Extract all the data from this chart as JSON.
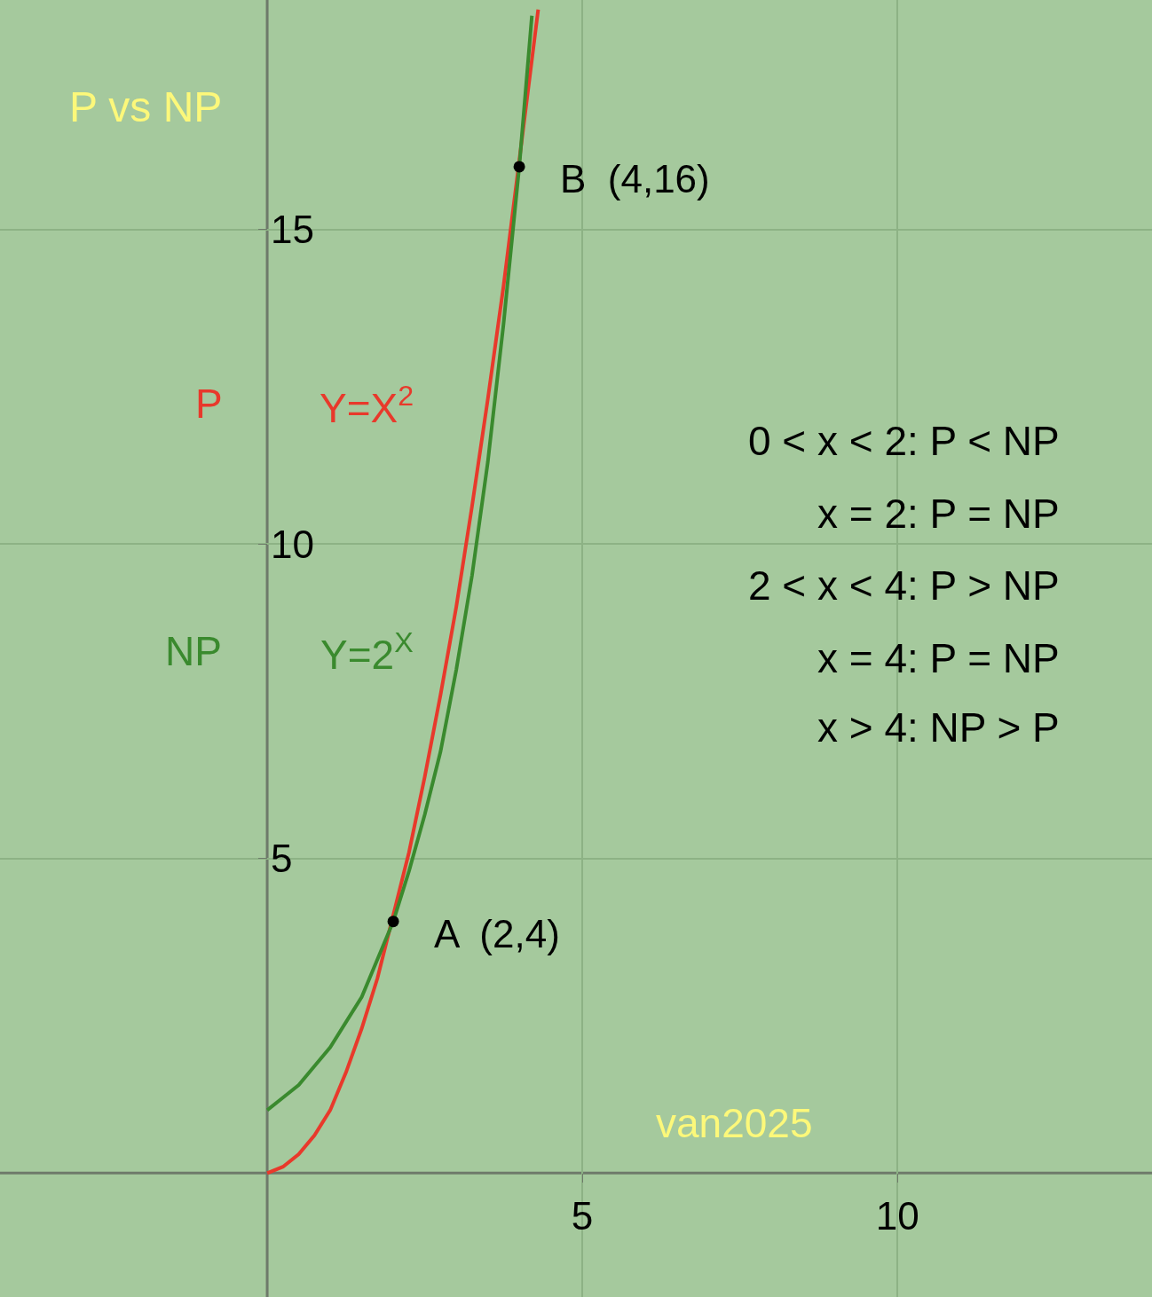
{
  "chart_data": {
    "type": "line",
    "title": "P vs NP",
    "x": [
      0,
      0.25,
      0.5,
      0.75,
      1,
      1.25,
      1.5,
      1.75,
      2,
      2.25,
      2.5,
      2.75,
      3,
      3.25,
      3.5,
      3.75,
      4,
      4.2
    ],
    "series": [
      {
        "name": "P",
        "color": "#e8392b",
        "x": [
          0,
          0.25,
          0.5,
          0.75,
          1,
          1.25,
          1.5,
          1.75,
          2.25,
          2.5,
          2.75,
          3,
          3.25,
          3.5,
          3.75,
          4.25,
          4.3
        ],
        "values": [
          0,
          0.1,
          0.3,
          0.6,
          1,
          1.6,
          2.3,
          3.1,
          5.1,
          6.3,
          7.6,
          9,
          10.6,
          12.3,
          14.1,
          18.1,
          18.5
        ]
      },
      {
        "name": "NP",
        "color": "#3a8a2e",
        "values": [
          1,
          1.2,
          1.4,
          1.7,
          2,
          2.4,
          2.8,
          3.4,
          4,
          4.8,
          5.7,
          6.7,
          8,
          9.5,
          11.3,
          13.5,
          16,
          18.4
        ]
      },
      {
        "type": "scatter",
        "color": "#000000",
        "x": [
          2,
          4
        ],
        "values": [
          4,
          16
        ]
      }
    ],
    "annotations": [
      "Y=X$^{2}$",
      "Y=2$^{X}$",
      "0 < x < 2: P < NP",
      "x = 2: P = NP",
      "2 < x < 4: P > NP",
      "x = 4: P = NP",
      "x > 4: NP > P",
      "van2025",
      {
        "text": "A  (2,4)",
        "x": 2,
        "y": 4
      },
      {
        "text": "B  (4,16)",
        "x": 4,
        "y": 16
      }
    ],
    "xlim": [
      -4.24,
      14.04
    ],
    "ylim": [
      -1.97,
      18.65
    ],
    "xticks": [
      5,
      10
    ],
    "yticks": [
      5,
      10,
      15
    ],
    "grid": true,
    "legend": false,
    "line_style": "solid"
  }
}
